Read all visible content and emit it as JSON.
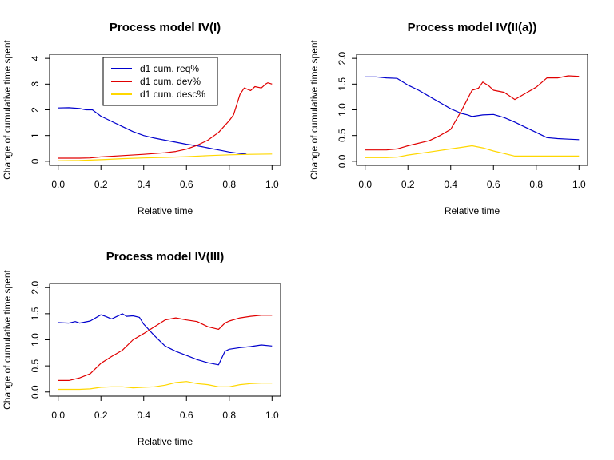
{
  "chart_data": [
    {
      "type": "line",
      "title": "Process model IV(I)",
      "xlabel": "Relative time",
      "ylabel": "Change of cumulative time spent",
      "xlim": [
        0,
        1
      ],
      "ylim": [
        0,
        4
      ],
      "xticks": [
        "0.0",
        "0.2",
        "0.4",
        "0.6",
        "0.8",
        "1.0"
      ],
      "yticks": [
        "0",
        "1",
        "2",
        "3",
        "4"
      ],
      "legend": {
        "position": "top-left-inside",
        "entries": [
          "d1 cum. req%",
          "d1 cum. dev%",
          "d1 cum. desc%"
        ]
      },
      "series": [
        {
          "name": "d1 cum. req%",
          "color": "#0000CD",
          "x": [
            0.0,
            0.05,
            0.1,
            0.13,
            0.16,
            0.2,
            0.25,
            0.3,
            0.35,
            0.4,
            0.45,
            0.5,
            0.55,
            0.6,
            0.65,
            0.7,
            0.75,
            0.8,
            0.85,
            0.88
          ],
          "y": [
            2.07,
            2.08,
            2.05,
            2.0,
            2.0,
            1.75,
            1.55,
            1.35,
            1.15,
            1.0,
            0.9,
            0.82,
            0.74,
            0.66,
            0.6,
            0.52,
            0.44,
            0.36,
            0.3,
            0.28
          ]
        },
        {
          "name": "d1 cum. dev%",
          "color": "#E00000",
          "x": [
            0.0,
            0.1,
            0.15,
            0.2,
            0.3,
            0.4,
            0.45,
            0.5,
            0.55,
            0.6,
            0.65,
            0.7,
            0.75,
            0.8,
            0.82,
            0.85,
            0.87,
            0.9,
            0.92,
            0.95,
            0.97,
            0.98,
            1.0
          ],
          "y": [
            0.12,
            0.12,
            0.13,
            0.17,
            0.22,
            0.27,
            0.3,
            0.33,
            0.38,
            0.47,
            0.62,
            0.82,
            1.12,
            1.58,
            1.8,
            2.6,
            2.85,
            2.75,
            2.9,
            2.85,
            3.0,
            3.05,
            3.0
          ]
        },
        {
          "name": "d1 cum. desc%",
          "color": "#FFD700",
          "x": [
            0.0,
            0.1,
            0.2,
            0.3,
            0.4,
            0.5,
            0.6,
            0.7,
            0.8,
            0.9,
            1.0
          ],
          "y": [
            0.02,
            0.03,
            0.06,
            0.1,
            0.13,
            0.15,
            0.18,
            0.22,
            0.25,
            0.27,
            0.28
          ]
        }
      ]
    },
    {
      "type": "line",
      "title": "Process model IV(II(a))",
      "xlabel": "Relative time",
      "ylabel": "Change of cumulative time spent",
      "xlim": [
        0,
        1
      ],
      "ylim": [
        0,
        2
      ],
      "xticks": [
        "0.0",
        "0.2",
        "0.4",
        "0.6",
        "0.8",
        "1.0"
      ],
      "yticks": [
        "0.0",
        "0.5",
        "1.0",
        "1.5",
        "2.0"
      ],
      "series": [
        {
          "name": "d1 cum. req%",
          "color": "#0000CD",
          "x": [
            0.0,
            0.05,
            0.1,
            0.15,
            0.2,
            0.25,
            0.3,
            0.35,
            0.4,
            0.45,
            0.48,
            0.5,
            0.55,
            0.6,
            0.65,
            0.7,
            0.75,
            0.8,
            0.85,
            0.9,
            0.95,
            1.0
          ],
          "y": [
            1.64,
            1.64,
            1.62,
            1.61,
            1.48,
            1.38,
            1.26,
            1.14,
            1.02,
            0.93,
            0.9,
            0.87,
            0.9,
            0.91,
            0.85,
            0.76,
            0.66,
            0.56,
            0.46,
            0.44,
            0.43,
            0.42
          ]
        },
        {
          "name": "d1 cum. dev%",
          "color": "#E00000",
          "x": [
            0.0,
            0.1,
            0.15,
            0.2,
            0.3,
            0.35,
            0.4,
            0.45,
            0.5,
            0.53,
            0.55,
            0.58,
            0.6,
            0.65,
            0.7,
            0.75,
            0.8,
            0.85,
            0.9,
            0.95,
            1.0
          ],
          "y": [
            0.22,
            0.22,
            0.24,
            0.3,
            0.4,
            0.5,
            0.62,
            0.98,
            1.38,
            1.42,
            1.54,
            1.46,
            1.38,
            1.34,
            1.2,
            1.32,
            1.44,
            1.62,
            1.62,
            1.66,
            1.65
          ]
        },
        {
          "name": "d1 cum. desc%",
          "color": "#FFD700",
          "x": [
            0.0,
            0.1,
            0.15,
            0.2,
            0.3,
            0.4,
            0.45,
            0.5,
            0.55,
            0.6,
            0.65,
            0.7,
            0.8,
            0.9,
            1.0
          ],
          "y": [
            0.07,
            0.07,
            0.08,
            0.12,
            0.18,
            0.24,
            0.27,
            0.3,
            0.26,
            0.2,
            0.15,
            0.1,
            0.1,
            0.1,
            0.1
          ]
        }
      ]
    },
    {
      "type": "line",
      "title": "Process model IV(III)",
      "xlabel": "Relative time",
      "ylabel": "Change of cumulative time spent",
      "xlim": [
        0,
        1
      ],
      "ylim": [
        0,
        2
      ],
      "xticks": [
        "0.0",
        "0.2",
        "0.4",
        "0.6",
        "0.8",
        "1.0"
      ],
      "yticks": [
        "0.0",
        "0.5",
        "1.0",
        "1.5",
        "2.0"
      ],
      "series": [
        {
          "name": "d1 cum. req%",
          "color": "#0000CD",
          "x": [
            0.0,
            0.05,
            0.08,
            0.1,
            0.15,
            0.2,
            0.22,
            0.25,
            0.3,
            0.32,
            0.35,
            0.38,
            0.4,
            0.45,
            0.5,
            0.55,
            0.6,
            0.65,
            0.7,
            0.75,
            0.78,
            0.8,
            0.85,
            0.9,
            0.95,
            1.0
          ],
          "y": [
            1.33,
            1.32,
            1.35,
            1.32,
            1.36,
            1.48,
            1.45,
            1.4,
            1.5,
            1.45,
            1.46,
            1.43,
            1.3,
            1.08,
            0.88,
            0.78,
            0.7,
            0.62,
            0.56,
            0.52,
            0.78,
            0.82,
            0.85,
            0.87,
            0.9,
            0.88
          ]
        },
        {
          "name": "d1 cum. dev%",
          "color": "#E00000",
          "x": [
            0.0,
            0.05,
            0.1,
            0.15,
            0.2,
            0.25,
            0.3,
            0.35,
            0.4,
            0.45,
            0.5,
            0.55,
            0.6,
            0.65,
            0.7,
            0.75,
            0.78,
            0.8,
            0.85,
            0.9,
            0.95,
            1.0
          ],
          "y": [
            0.22,
            0.22,
            0.27,
            0.35,
            0.55,
            0.68,
            0.8,
            1.0,
            1.12,
            1.25,
            1.38,
            1.42,
            1.38,
            1.35,
            1.25,
            1.2,
            1.32,
            1.36,
            1.42,
            1.45,
            1.47,
            1.47
          ]
        },
        {
          "name": "d1 cum. desc%",
          "color": "#FFD700",
          "x": [
            0.0,
            0.1,
            0.15,
            0.2,
            0.25,
            0.3,
            0.35,
            0.4,
            0.45,
            0.5,
            0.55,
            0.6,
            0.65,
            0.7,
            0.75,
            0.8,
            0.85,
            0.9,
            0.95,
            1.0
          ],
          "y": [
            0.05,
            0.05,
            0.06,
            0.09,
            0.1,
            0.1,
            0.08,
            0.09,
            0.1,
            0.13,
            0.18,
            0.2,
            0.16,
            0.14,
            0.1,
            0.1,
            0.14,
            0.16,
            0.17,
            0.17
          ]
        }
      ]
    }
  ]
}
